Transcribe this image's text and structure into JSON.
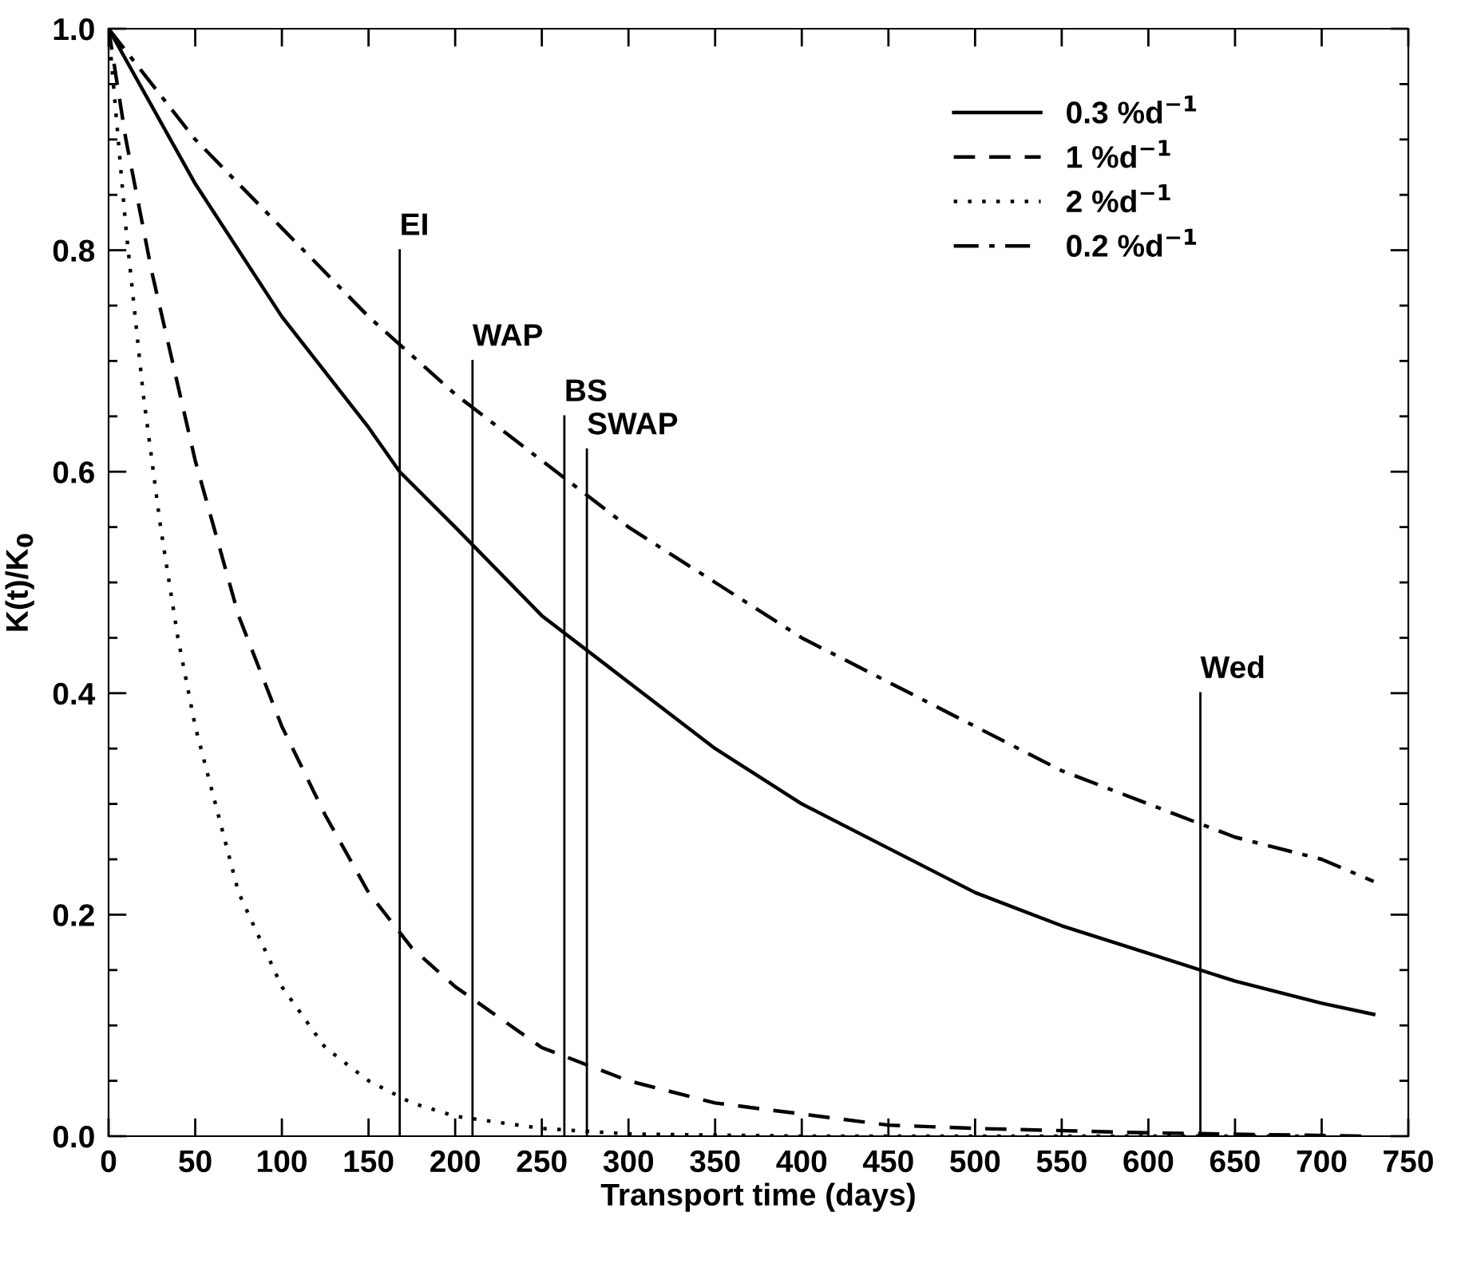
{
  "chart_data": {
    "type": "line",
    "xlabel": "Transport time (days)",
    "ylabel": "K(t)/K$_{0}$",
    "xlim": [
      0,
      750
    ],
    "ylim": [
      0,
      1.0
    ],
    "xticks": [
      0,
      50,
      100,
      150,
      200,
      250,
      300,
      350,
      400,
      450,
      500,
      550,
      600,
      650,
      700,
      750
    ],
    "yticks": [
      {
        "value": 0.0,
        "label": "0.0"
      },
      {
        "value": 0.05,
        "label": null
      },
      {
        "value": 0.1,
        "label": null
      },
      {
        "value": 0.15,
        "label": null
      },
      0.2,
      {
        "value": 0.25,
        "label": null
      },
      {
        "value": 0.3,
        "label": null
      },
      {
        "value": 0.35,
        "label": null
      },
      0.4,
      {
        "value": 0.45,
        "label": null
      },
      {
        "value": 0.5,
        "label": null
      },
      {
        "value": 0.55,
        "label": null
      },
      0.6,
      {
        "value": 0.65,
        "label": null
      },
      {
        "value": 0.7,
        "label": null
      },
      {
        "value": 0.75,
        "label": null
      },
      0.8,
      {
        "value": 0.85,
        "label": null
      },
      {
        "value": 0.9,
        "label": null
      },
      {
        "value": 0.95,
        "label": null
      },
      {
        "value": 1.0,
        "label": "1.0"
      }
    ],
    "legend": "top right",
    "grid": false,
    "series": [
      {
        "name": "0.3 %d$^{−1}$",
        "color": "#000000",
        "line_style": "solid",
        "x": [
          0,
          50,
          100,
          150,
          168,
          200,
          250,
          300,
          350,
          400,
          450,
          500,
          550,
          600,
          650,
          700,
          730
        ],
        "values": [
          1.0,
          0.86,
          0.74,
          0.64,
          0.6,
          0.55,
          0.47,
          0.41,
          0.35,
          0.3,
          0.26,
          0.22,
          0.19,
          0.165,
          0.14,
          0.12,
          0.11
        ]
      },
      {
        "name": "1 %d$^{−1}$",
        "color": "#000000",
        "line_style": "dashed",
        "x": [
          0,
          10,
          25,
          50,
          75,
          100,
          125,
          150,
          175,
          200,
          250,
          300,
          350,
          400,
          450,
          500,
          600,
          725
        ],
        "values": [
          1.0,
          0.9,
          0.78,
          0.61,
          0.47,
          0.37,
          0.29,
          0.22,
          0.17,
          0.135,
          0.08,
          0.05,
          0.03,
          0.02,
          0.01,
          0.007,
          0.003,
          0.0
        ]
      },
      {
        "name": "2 %d$^{−1}$",
        "color": "#000000",
        "line_style": "dotted",
        "x": [
          0,
          10,
          20,
          30,
          40,
          50,
          75,
          100,
          125,
          150,
          175,
          200,
          250,
          300,
          400,
          700
        ],
        "values": [
          1.0,
          0.82,
          0.67,
          0.55,
          0.45,
          0.37,
          0.22,
          0.135,
          0.08,
          0.05,
          0.03,
          0.018,
          0.007,
          0.002,
          0.0,
          0.0
        ]
      },
      {
        "name": "0.2 %d$^{−1}$",
        "color": "#000000",
        "line_style": "dashdot",
        "x": [
          0,
          50,
          100,
          150,
          200,
          250,
          300,
          350,
          400,
          450,
          500,
          550,
          600,
          650,
          700,
          730
        ],
        "values": [
          1.0,
          0.9,
          0.82,
          0.74,
          0.67,
          0.61,
          0.55,
          0.5,
          0.45,
          0.41,
          0.37,
          0.33,
          0.3,
          0.27,
          0.25,
          0.23
        ]
      },
      {
        "name": "EI",
        "color": "#000000",
        "line_style": "solid",
        "x": [
          168,
          168
        ],
        "values": [
          0.0,
          0.8
        ]
      },
      {
        "name": "WAP",
        "color": "#000000",
        "line_style": "solid",
        "x": [
          210,
          210
        ],
        "values": [
          0.0,
          0.7
        ]
      },
      {
        "name": "BS",
        "color": "#000000",
        "line_style": "solid",
        "x": [
          263,
          263
        ],
        "values": [
          0.0,
          0.65
        ]
      },
      {
        "name": "SWAP",
        "color": "#000000",
        "line_style": "solid",
        "x": [
          276,
          276
        ],
        "values": [
          0.0,
          0.62
        ]
      },
      {
        "name": "Wed",
        "color": "#000000",
        "line_style": "solid",
        "x": [
          630,
          630
        ],
        "values": [
          0.0,
          0.4
        ]
      }
    ]
  }
}
